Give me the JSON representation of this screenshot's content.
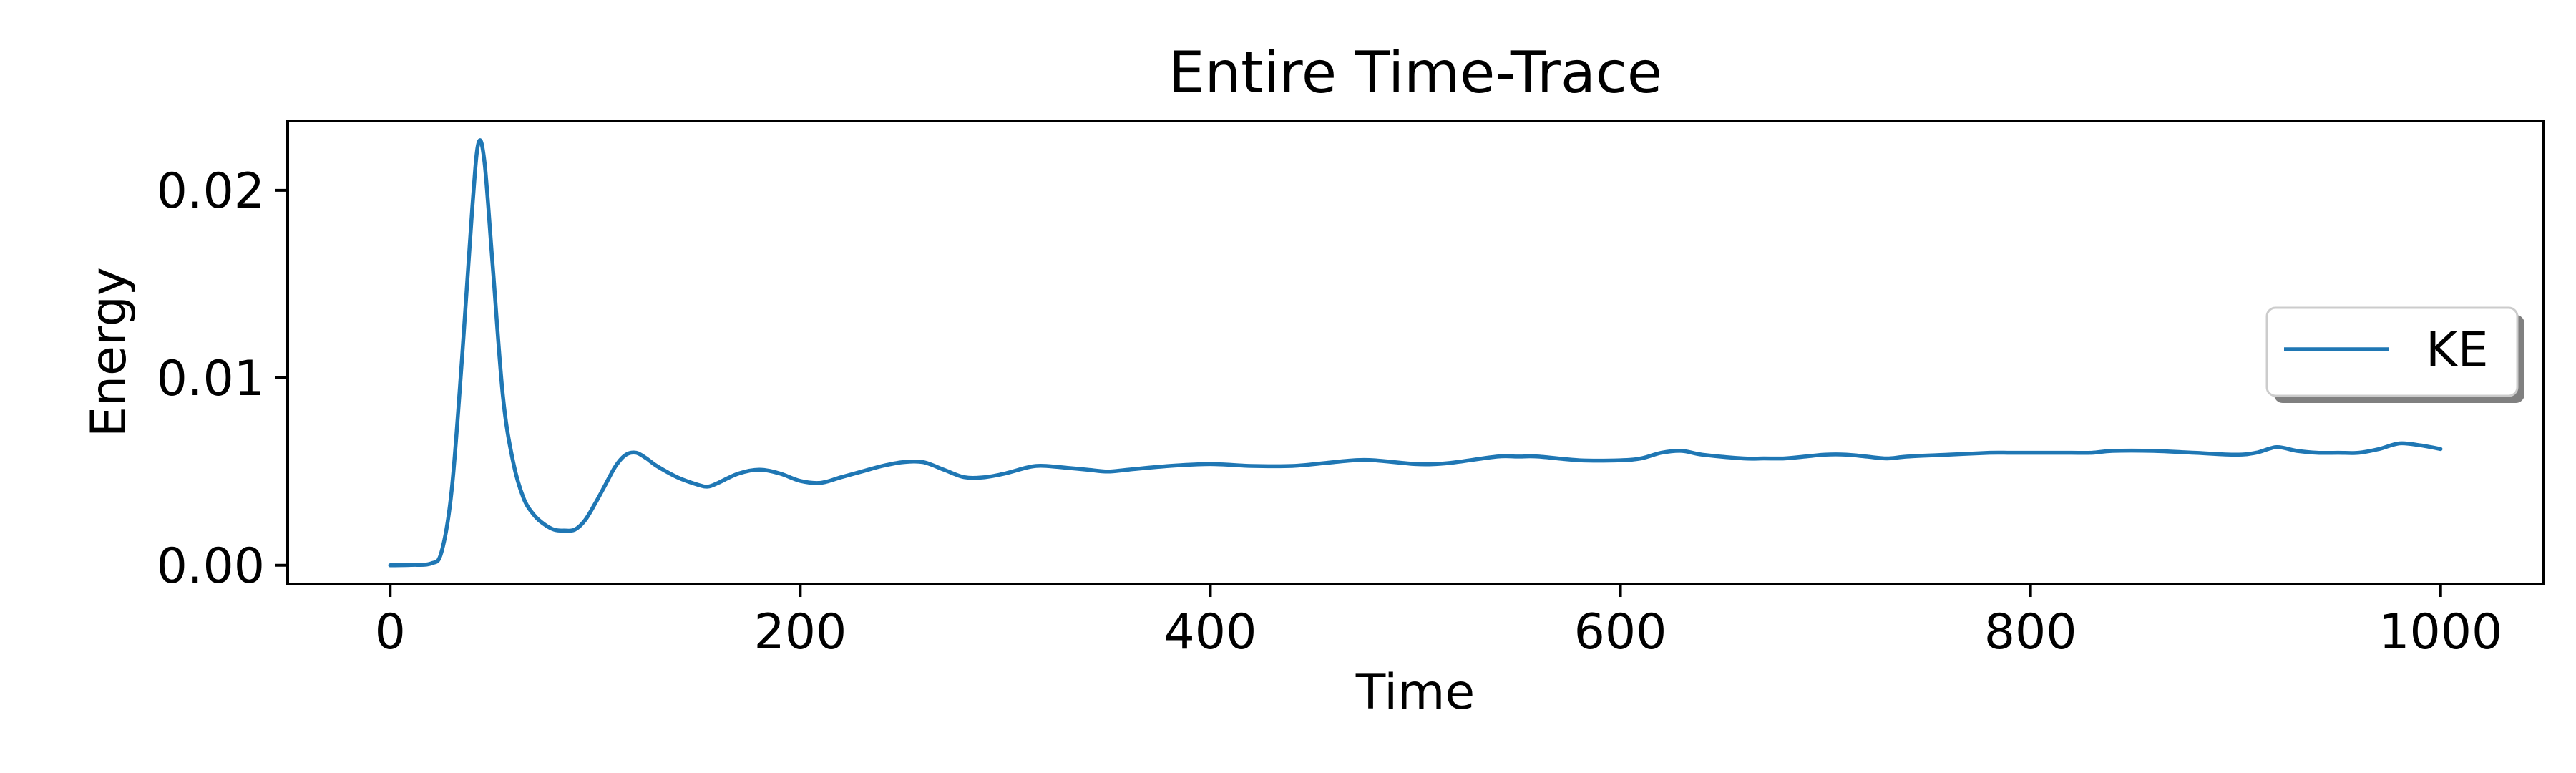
{
  "chart_data": {
    "type": "line",
    "title": "Entire Time-Trace",
    "xlabel": "Time",
    "ylabel": "Energy",
    "xlim": [
      -50,
      1050
    ],
    "ylim": [
      -0.001,
      0.0237
    ],
    "xticks": [
      0,
      200,
      400,
      600,
      800,
      1000
    ],
    "xtick_labels": [
      "0",
      "200",
      "400",
      "600",
      "800",
      "1000"
    ],
    "yticks": [
      0.0,
      0.01,
      0.02
    ],
    "ytick_labels": [
      "0.00",
      "0.01",
      "0.02"
    ],
    "grid": false,
    "legend_position": "center-right",
    "series": [
      {
        "name": "KE",
        "color": "#1f77b4",
        "x": [
          0,
          10,
          20,
          25,
          30,
          35,
          40,
          43,
          46,
          50,
          55,
          60,
          65,
          70,
          75,
          80,
          85,
          90,
          95,
          100,
          105,
          110,
          115,
          120,
          125,
          130,
          140,
          150,
          155,
          160,
          170,
          180,
          190,
          200,
          210,
          220,
          230,
          240,
          250,
          260,
          270,
          280,
          290,
          300,
          310,
          315,
          320,
          330,
          340,
          350,
          360,
          380,
          400,
          420,
          440,
          460,
          470,
          480,
          500,
          510,
          520,
          540,
          550,
          560,
          580,
          600,
          610,
          620,
          630,
          640,
          660,
          670,
          680,
          690,
          700,
          710,
          720,
          730,
          740,
          760,
          780,
          790,
          800,
          820,
          830,
          840,
          860,
          880,
          900,
          910,
          920,
          930,
          940,
          950,
          960,
          970,
          980,
          990,
          1000
        ],
        "values": [
          0.0,
          2e-05,
          0.0001,
          0.0007,
          0.004,
          0.011,
          0.019,
          0.0225,
          0.0215,
          0.016,
          0.009,
          0.0055,
          0.0036,
          0.0027,
          0.0022,
          0.0019,
          0.00185,
          0.0019,
          0.0024,
          0.0033,
          0.0043,
          0.0053,
          0.0059,
          0.006,
          0.0057,
          0.0053,
          0.0047,
          0.0043,
          0.0042,
          0.0044,
          0.0049,
          0.0051,
          0.0049,
          0.0045,
          0.0044,
          0.0047,
          0.005,
          0.0053,
          0.0055,
          0.0055,
          0.0051,
          0.0047,
          0.0047,
          0.0049,
          0.0052,
          0.0053,
          0.0053,
          0.0052,
          0.0051,
          0.005,
          0.0051,
          0.0053,
          0.0054,
          0.0053,
          0.0053,
          0.0055,
          0.0056,
          0.0056,
          0.0054,
          0.0054,
          0.0055,
          0.0058,
          0.0058,
          0.0058,
          0.0056,
          0.0056,
          0.0057,
          0.006,
          0.0061,
          0.0059,
          0.0057,
          0.0057,
          0.0057,
          0.0058,
          0.0059,
          0.0059,
          0.0058,
          0.0057,
          0.0058,
          0.0059,
          0.006,
          0.006,
          0.006,
          0.006,
          0.006,
          0.0061,
          0.0061,
          0.006,
          0.0059,
          0.006,
          0.0063,
          0.0061,
          0.006,
          0.006,
          0.006,
          0.0062,
          0.0065,
          0.0064,
          0.0062
        ]
      }
    ]
  }
}
